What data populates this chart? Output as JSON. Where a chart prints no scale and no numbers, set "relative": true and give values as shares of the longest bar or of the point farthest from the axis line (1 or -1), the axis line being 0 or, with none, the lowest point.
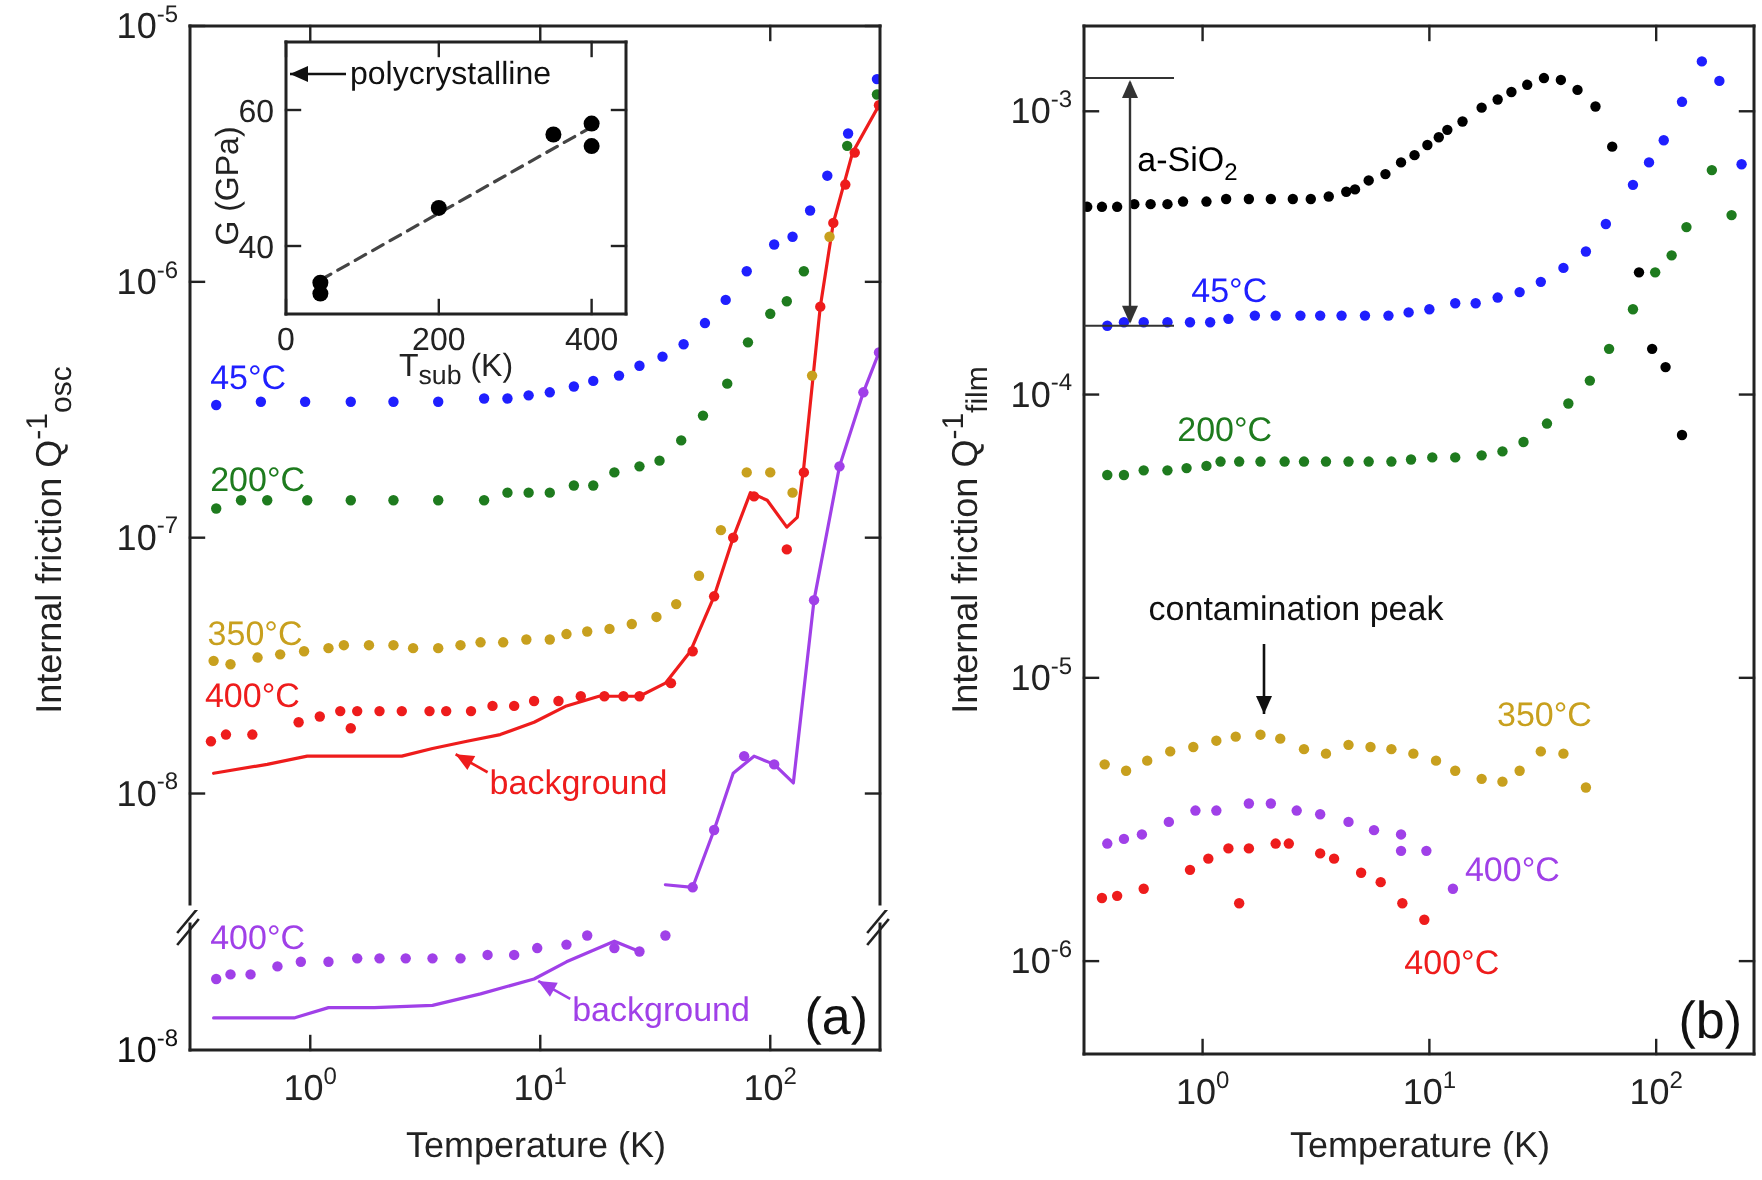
{
  "chart_data": [
    {
      "type": "scatter",
      "ylabel": "Internal friction Q$^{-1}$$_{osc}$",
      "log": "xy",
      "marker": "circle",
      "tick_labels": "y",
      "xlim": [
        0.3,
        300
      ],
      "xticks": [
        {
          "value": 1,
          "label": null
        },
        {
          "value": 10,
          "label": null
        },
        {
          "value": 100,
          "label": null
        }
      ],
      "ylim": [
        3.7e-09,
        1e-05
      ],
      "yticks": [
        {
          "value": 1e-05,
          "label": "10$^{-5}$"
        },
        {
          "value": 1e-06,
          "label": "10$^{-6}$"
        },
        {
          "value": 1e-07,
          "label": "10$^{-7}$"
        },
        {
          "value": 1e-08,
          "label": "10$^{-8}$"
        }
      ],
      "annotations": [
        {
          "text": "background",
          "x": 4.2,
          "y": 1.45e-08
        }
      ],
      "series": [
        {
          "name": "45°C",
          "color": "#1f1fff",
          "x": [
            0.39,
            0.61,
            0.95,
            1.5,
            2.3,
            3.6,
            5.7,
            7.2,
            8.9,
            11,
            14,
            17,
            22,
            27,
            34,
            42,
            52,
            64,
            79,
            104,
            125,
            149,
            177,
            218,
            291
          ],
          "values": [
            3.3e-07,
            3.4e-07,
            3.4e-07,
            3.4e-07,
            3.4e-07,
            3.4e-07,
            3.5e-07,
            3.5e-07,
            3.6e-07,
            3.7e-07,
            3.9e-07,
            4.1e-07,
            4.3e-07,
            4.7e-07,
            5.1e-07,
            5.7e-07,
            6.9e-07,
            8.5e-07,
            1.1e-06,
            1.4e-06,
            1.5e-06,
            1.9e-06,
            2.6e-06,
            3.8e-06,
            6.2e-06
          ]
        },
        {
          "name": "200°C",
          "color": "#1e7b1e",
          "x": [
            0.39,
            0.5,
            0.65,
            0.97,
            1.5,
            2.3,
            3.6,
            5.7,
            7.2,
            8.9,
            11,
            14,
            17,
            21,
            27,
            33,
            41,
            51,
            65,
            80,
            100,
            118,
            140,
            177,
            216,
            291
          ],
          "values": [
            1.3e-07,
            1.4e-07,
            1.4e-07,
            1.4e-07,
            1.4e-07,
            1.4e-07,
            1.4e-07,
            1.4e-07,
            1.5e-07,
            1.5e-07,
            1.5e-07,
            1.6e-07,
            1.6e-07,
            1.8e-07,
            1.9e-07,
            2e-07,
            2.4e-07,
            3e-07,
            4e-07,
            5.8e-07,
            7.5e-07,
            8.4e-07,
            1.1e-06,
            null,
            3.4e-06,
            5.4e-06
          ]
        },
        {
          "name": "350°C",
          "color": "#c8a01e",
          "x": [
            0.38,
            0.45,
            0.59,
            0.74,
            0.94,
            1.2,
            1.4,
            1.8,
            2.3,
            2.8,
            3.6,
            4.5,
            5.5,
            6.9,
            8.7,
            11,
            13,
            16,
            20,
            25,
            32,
            39,
            49,
            61,
            79,
            100,
            125,
            152,
            181
          ],
          "values": [
            3.3e-08,
            3.2e-08,
            3.4e-08,
            3.5e-08,
            3.6e-08,
            3.7e-08,
            3.8e-08,
            3.8e-08,
            3.8e-08,
            3.7e-08,
            3.7e-08,
            3.8e-08,
            3.9e-08,
            3.9e-08,
            4e-08,
            4e-08,
            4.2e-08,
            4.3e-08,
            4.4e-08,
            4.6e-08,
            4.9e-08,
            5.5e-08,
            7.1e-08,
            1.07e-07,
            1.8e-07,
            1.8e-07,
            1.5e-07,
            4.3e-07,
            1.5e-06
          ]
        },
        {
          "name": "400°C",
          "color": "#ee1c1c",
          "x": [
            0.37,
            0.43,
            0.56,
            0.89,
            1.1,
            1.35,
            1.5,
            1.6,
            2.0,
            2.5,
            3.3,
            3.9,
            5.0,
            6.2,
            7.7,
            9.4,
            12,
            15,
            19,
            23,
            27,
            37,
            46,
            57,
            69,
            85,
            118,
            140,
            165,
            188,
            212,
            233,
            297
          ],
          "values": [
            1.6e-08,
            1.7e-08,
            1.7e-08,
            1.9e-08,
            2e-08,
            2.1e-08,
            1.8e-08,
            2.1e-08,
            2.1e-08,
            2.1e-08,
            2.1e-08,
            2.1e-08,
            2.1e-08,
            2.2e-08,
            2.2e-08,
            2.3e-08,
            2.3e-08,
            2.4e-08,
            2.4e-08,
            2.4e-08,
            2.4e-08,
            2.7e-08,
            3.6e-08,
            5.9e-08,
            1e-07,
            1.45e-07,
            9e-08,
            1.8e-07,
            8e-07,
            1.7e-06,
            2.4e-06,
            3.2e-06,
            4.9e-06
          ]
        },
        {
          "type": "line",
          "marker": "none",
          "color": "#ee1c1c",
          "x": [
            0.38,
            0.65,
            0.97,
            2.5,
            3.4,
            4.8,
            6.7,
            9.4,
            13,
            18,
            27,
            35,
            45,
            57,
            69,
            82,
            97,
            118,
            131,
            140,
            165,
            188,
            228,
            297
          ],
          "values": [
            1.2e-08,
            1.3e-08,
            1.4e-08,
            1.4e-08,
            1.5e-08,
            1.6e-08,
            1.7e-08,
            1.9e-08,
            2.2e-08,
            2.4e-08,
            2.4e-08,
            2.7e-08,
            3.6e-08,
            5.9e-08,
            1e-07,
            1.5e-07,
            1.4e-07,
            1.1e-07,
            1.2e-07,
            1.9e-07,
            8e-07,
            1.7e-06,
            3.2e-06,
            4.9e-06
          ]
        },
        {
          "color": "#a040e8",
          "x": [
            46,
            57,
            77,
            104,
            155,
            200,
            254,
            297
          ],
          "values": [
            4.3e-09,
            7.2e-09,
            1.4e-08,
            1.3e-08,
            5.7e-08,
            1.9e-07,
            3.7e-07,
            5.3e-07
          ]
        },
        {
          "type": "line",
          "marker": "none",
          "color": "#a040e8",
          "x": [
            35,
            46,
            57,
            69,
            85,
            104,
            126,
            155,
            200,
            254,
            297
          ],
          "values": [
            4.4e-09,
            4.3e-09,
            7.2e-09,
            1.2e-08,
            1.4e-08,
            1.3e-08,
            1.1e-08,
            5.7e-08,
            1.9e-07,
            3.7e-07,
            5.3e-07
          ]
        }
      ]
    },
    {
      "type": "scatter",
      "xlabel": "T$_{sub}$ (K)",
      "ylabel": "G (GPa)",
      "marker": "circle",
      "xlim": [
        0,
        445
      ],
      "xticks": [
        0,
        200,
        400
      ],
      "ylim": [
        30,
        70
      ],
      "yticks": [
        40,
        60
      ],
      "annotations": [
        "polycrystalline"
      ],
      "series": [
        {
          "color": "#000000",
          "x": [
            45,
            45,
            200,
            350,
            400,
            400
          ],
          "values": [
            34.6,
            33.0,
            45.6,
            56.4,
            58.0,
            54.7
          ]
        },
        {
          "type": "line",
          "marker": "none",
          "line_style": "dashed",
          "color": "#444444",
          "x": [
            45,
            400
          ],
          "values": [
            35,
            57.5
          ]
        }
      ]
    },
    {
      "type": "scatter",
      "xlabel": "Temperature (K)",
      "log": "x",
      "marker": "circle",
      "relative": true,
      "xlim": [
        0.3,
        300
      ],
      "xticks": [
        {
          "value": 1,
          "label": "10$^{0}$"
        },
        {
          "value": 10,
          "label": "10$^{1}$"
        },
        {
          "value": 100,
          "label": "10$^{2}$"
        }
      ],
      "annotations": [
        {
          "text": "background",
          "x": 9.6,
          "y": 0.62
        },
        "(a)",
        "10$^{-8}$"
      ],
      "series": [
        {
          "name": "400°C",
          "color": "#a040e8",
          "x": [
            0.39,
            0.45,
            0.55,
            0.72,
            0.91,
            1.2,
            1.6,
            2.0,
            2.6,
            3.4,
            4.5,
            5.9,
            7.7,
            9.7,
            13,
            16,
            21,
            27,
            35
          ],
          "values": [
            0.62,
            0.66,
            0.66,
            0.73,
            0.77,
            0.77,
            0.8,
            0.8,
            0.8,
            0.8,
            0.8,
            0.83,
            0.83,
            0.89,
            0.92,
            1,
            0.89,
            0.86,
            1
          ]
        },
        {
          "type": "line",
          "marker": "none",
          "color": "#a040e8",
          "x": [
            0.38,
            0.85,
            1.2,
            1.9,
            3.4,
            5.5,
            9.4,
            13,
            21,
            27
          ],
          "values": [
            0.28,
            0.28,
            0.37,
            0.37,
            0.39,
            0.49,
            0.62,
            0.77,
            0.95,
            0.86
          ]
        }
      ]
    },
    {
      "type": "scatter",
      "xlabel": "Temperature (K)",
      "ylabel": "Internal friction Q$^{-1}$$_{film}$",
      "log": "xy",
      "marker": "circle",
      "xlim": [
        0.3,
        270
      ],
      "xticks": [
        {
          "value": 1,
          "label": "10$^{0}$"
        },
        {
          "value": 10,
          "label": "10$^{1}$"
        },
        {
          "value": 100,
          "label": "10$^{2}$"
        }
      ],
      "ylim": [
        4.7e-07,
        0.002
      ],
      "yticks": [
        {
          "value": 0.001,
          "label": "10$^{-3}$"
        },
        {
          "value": 0.0001,
          "label": "10$^{-4}$"
        },
        {
          "value": 1e-05,
          "label": "10$^{-5}$"
        },
        {
          "value": 1e-06,
          "label": "10$^{-6}$"
        }
      ],
      "annotations": [
        "contamination peak",
        "(b)"
      ],
      "series": [
        {
          "name": "a-SiO$_{2}$",
          "color": "#000000",
          "x": [
            0.31,
            0.36,
            0.42,
            0.5,
            0.59,
            0.7,
            0.82,
            1.04,
            1.27,
            1.6,
            2.0,
            2.5,
            3.0,
            3.6,
            4.3,
            4.7,
            5.4,
            6.4,
            7.5,
            8.6,
            9.8,
            11,
            12,
            14,
            17,
            20,
            23,
            27,
            32,
            38,
            45,
            54,
            64,
            84,
            96,
            110,
            130
          ],
          "values": [
            0.00046,
            0.00046,
            0.00046,
            0.00047,
            0.00047,
            0.00047,
            0.00048,
            0.00048,
            0.00049,
            0.00049,
            0.00049,
            0.00049,
            0.00049,
            0.0005,
            0.00052,
            0.00053,
            0.00057,
            0.0006,
            0.00066,
            0.0007,
            0.00076,
            0.00081,
            0.00086,
            0.00092,
            0.00103,
            0.0011,
            0.00117,
            0.00124,
            0.00131,
            0.00129,
            0.00119,
            0.00104,
            0.00075,
            0.00027,
            0.000145,
            0.000125,
            7.2e-05
          ]
        },
        {
          "name": "45°C",
          "color": "#1f1fff",
          "x": [
            0.38,
            0.45,
            0.55,
            0.7,
            0.88,
            1.08,
            1.3,
            1.7,
            2.1,
            2.7,
            3.3,
            4.1,
            5.2,
            6.6,
            8.1,
            10,
            13,
            16,
            20,
            25,
            31,
            39,
            49,
            60,
            79,
            93,
            108,
            130,
            159,
            190,
            238
          ],
          "values": [
            0.000175,
            0.00018,
            0.00018,
            0.00018,
            0.00018,
            0.00018,
            0.000185,
            0.00019,
            0.00019,
            0.00019,
            0.00019,
            0.00019,
            0.00019,
            0.00019,
            0.000195,
            0.0002,
            0.00021,
            0.00021,
            0.00022,
            0.00023,
            0.00025,
            0.00028,
            0.00032,
            0.0004,
            0.00055,
            0.00066,
            0.00079,
            0.00108,
            0.0015,
            0.00128,
            0.00065
          ]
        },
        {
          "name": "200°C",
          "color": "#1e7b1e",
          "x": [
            0.38,
            0.45,
            0.55,
            0.7,
            0.85,
            1.04,
            1.2,
            1.45,
            1.8,
            2.3,
            2.8,
            3.5,
            4.4,
            5.4,
            6.8,
            8.3,
            10.3,
            13,
            17,
            21,
            26,
            33,
            41,
            51,
            62,
            79,
            99,
            117,
            136,
            176,
            215
          ],
          "values": [
            5.2e-05,
            5.2e-05,
            5.4e-05,
            5.4e-05,
            5.5e-05,
            5.6e-05,
            5.8e-05,
            5.8e-05,
            5.8e-05,
            5.8e-05,
            5.8e-05,
            5.8e-05,
            5.8e-05,
            5.8e-05,
            5.8e-05,
            5.9e-05,
            6e-05,
            6e-05,
            6.1e-05,
            6.3e-05,
            6.8e-05,
            7.9e-05,
            9.3e-05,
            0.000112,
            0.000145,
            0.0002,
            0.00027,
            0.00031,
            0.00039,
            0.00062,
            0.00043
          ]
        },
        {
          "name": "350°C",
          "color": "#c8a01e",
          "x": [
            0.37,
            0.46,
            0.57,
            0.72,
            0.91,
            1.15,
            1.4,
            1.8,
            2.2,
            2.8,
            3.5,
            4.4,
            5.5,
            6.8,
            8.5,
            10.7,
            13,
            17,
            21,
            25,
            31,
            39,
            49
          ],
          "values": [
            4.95e-06,
            4.7e-06,
            5.1e-06,
            5.5e-06,
            5.7e-06,
            6e-06,
            6.2e-06,
            6.3e-06,
            6.1e-06,
            5.6e-06,
            5.4e-06,
            5.8e-06,
            5.7e-06,
            5.6e-06,
            5.4e-06,
            5.1e-06,
            4.7e-06,
            4.4e-06,
            4.3e-06,
            4.7e-06,
            5.5e-06,
            5.4e-06,
            4.1e-06
          ]
        },
        {
          "name": "400°C",
          "color": "#a040e8",
          "x": [
            0.38,
            0.45,
            0.54,
            0.71,
            0.93,
            1.15,
            1.6,
            2.0,
            2.6,
            3.3,
            4.4,
            5.7,
            7.5,
            7.5,
            9.7,
            12.7
          ],
          "values": [
            2.6e-06,
            2.7e-06,
            2.8e-06,
            3.1e-06,
            3.4e-06,
            3.4e-06,
            3.6e-06,
            3.6e-06,
            3.4e-06,
            3.3e-06,
            3.1e-06,
            2.9e-06,
            2.8e-06,
            2.45e-06,
            2.45e-06,
            1.8e-06
          ]
        },
        {
          "name": "400°C",
          "color": "#ee1c1c",
          "x": [
            0.36,
            0.42,
            0.55,
            0.88,
            1.06,
            1.3,
            1.45,
            1.6,
            2.1,
            2.4,
            3.3,
            3.8,
            5.0,
            6.1,
            7.6,
            9.5
          ],
          "values": [
            1.67e-06,
            1.7e-06,
            1.8e-06,
            2.1e-06,
            2.3e-06,
            2.5e-06,
            1.6e-06,
            2.5e-06,
            2.6e-06,
            2.6e-06,
            2.4e-06,
            2.3e-06,
            2.05e-06,
            1.9e-06,
            1.6e-06,
            1.4e-06
          ]
        }
      ]
    }
  ]
}
